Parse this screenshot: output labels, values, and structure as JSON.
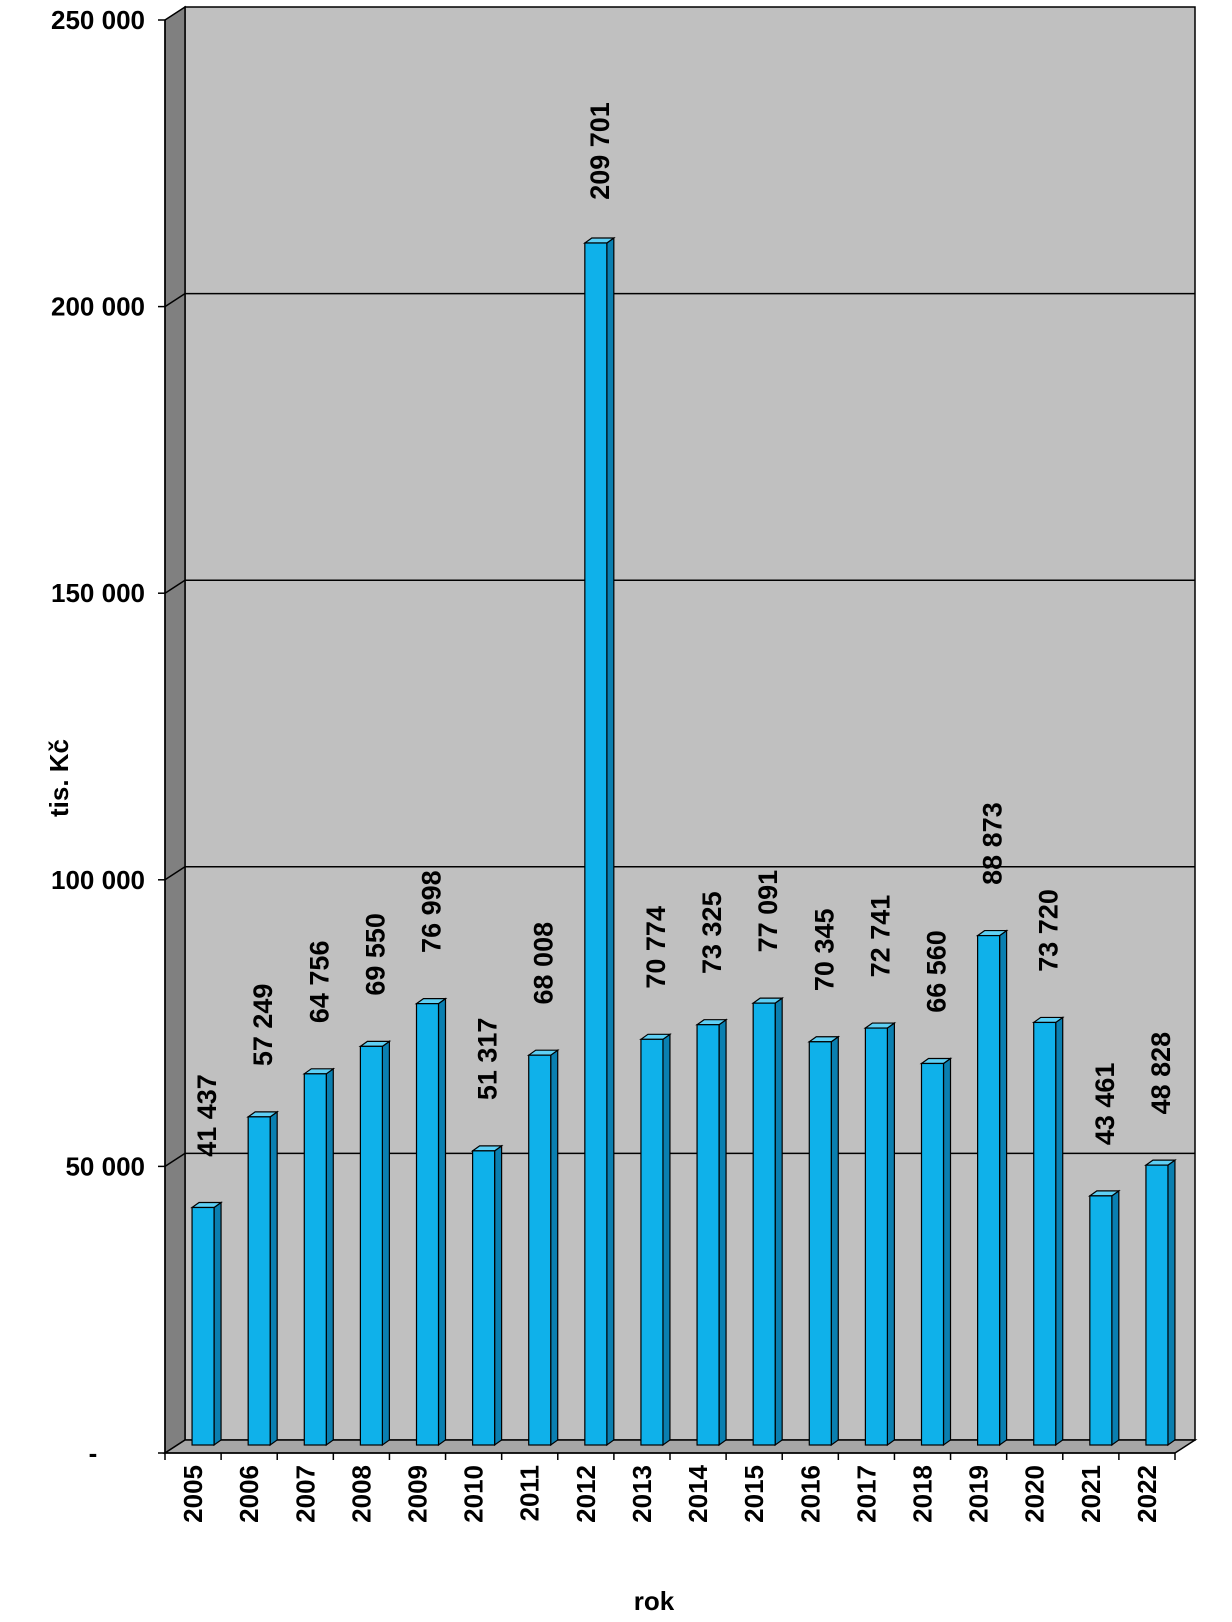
{
  "chart_data": {
    "type": "bar",
    "title": "",
    "xlabel": "rok",
    "ylabel": "tis. Kč",
    "ylim": [
      0,
      250000
    ],
    "y_ticks": [
      0,
      50000,
      100000,
      150000,
      200000,
      250000
    ],
    "y_tick_labels": [
      "-",
      "50 000",
      "100 000",
      "150 000",
      "200 000",
      "250 000"
    ],
    "grid": true,
    "legend": "none",
    "categories": [
      "2005",
      "2006",
      "2007",
      "2008",
      "2009",
      "2010",
      "2011",
      "2012",
      "2013",
      "2014",
      "2015",
      "2016",
      "2017",
      "2018",
      "2019",
      "2020",
      "2021",
      "2022"
    ],
    "values": [
      41437,
      57249,
      64756,
      69550,
      76998,
      51317,
      68008,
      209701,
      70774,
      73325,
      77091,
      70345,
      72741,
      66560,
      88873,
      73720,
      43461,
      48828
    ],
    "value_labels": [
      "41 437",
      "57 249",
      "64 756",
      "69 550",
      "76 998",
      "51 317",
      "68 008",
      "209 701",
      "70 774",
      "73 325",
      "77 091",
      "70 345",
      "72 741",
      "66 560",
      "88 873",
      "73 720",
      "43 461",
      "48 828"
    ],
    "colors": {
      "bar_front": "#0fb1ea",
      "bar_side": "#0a7fb0",
      "bar_top": "#5fd0f5",
      "wall": "#c0c0c0",
      "side_wall": "#808080",
      "floor": "#a6a6a6",
      "grid": "#000000"
    }
  }
}
